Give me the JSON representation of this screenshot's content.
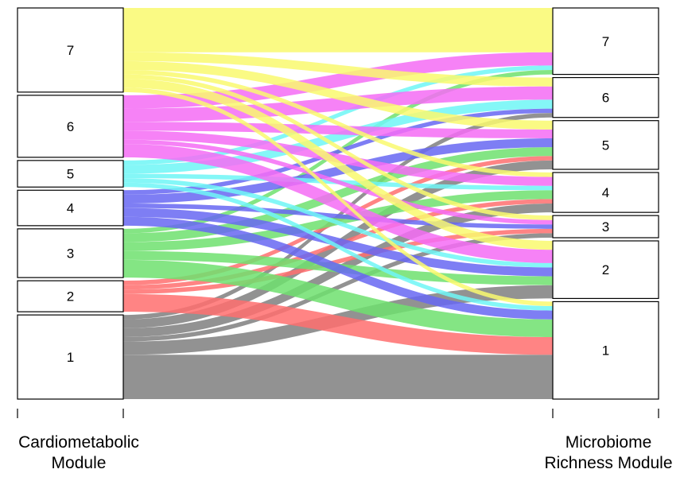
{
  "axes": {
    "left_label_lines": [
      "Cardiometabolic",
      "Module"
    ],
    "right_label_lines": [
      "Microbiome",
      "Richness Module"
    ]
  },
  "left_modules": [
    "7",
    "6",
    "5",
    "4",
    "3",
    "2",
    "1"
  ],
  "right_modules": [
    "7",
    "6",
    "5",
    "4",
    "3",
    "2",
    "1"
  ],
  "module_colors": {
    "1": "#7f7f7f",
    "2": "#ff6f6f",
    "3": "#6fe06f",
    "4": "#6767f2",
    "5": "#6ff6f6",
    "6": "#f56cf5",
    "7": "#f9f96f"
  },
  "flow_colored_by": "left module",
  "flows": [
    {
      "from": "7",
      "to": "7",
      "weight": 10
    },
    {
      "from": "7",
      "to": "6",
      "weight": 2
    },
    {
      "from": "7",
      "to": "5",
      "weight": 2
    },
    {
      "from": "7",
      "to": "4",
      "weight": 1
    },
    {
      "from": "7",
      "to": "3",
      "weight": 1
    },
    {
      "from": "7",
      "to": "2",
      "weight": 2
    },
    {
      "from": "7",
      "to": "1",
      "weight": 1
    },
    {
      "from": "6",
      "to": "7",
      "weight": 3
    },
    {
      "from": "6",
      "to": "6",
      "weight": 3
    },
    {
      "from": "6",
      "to": "5",
      "weight": 2
    },
    {
      "from": "6",
      "to": "4",
      "weight": 2
    },
    {
      "from": "6",
      "to": "3",
      "weight": 1
    },
    {
      "from": "6",
      "to": "2",
      "weight": 3
    },
    {
      "from": "5",
      "to": "7",
      "weight": 1
    },
    {
      "from": "5",
      "to": "6",
      "weight": 2
    },
    {
      "from": "5",
      "to": "4",
      "weight": 1
    },
    {
      "from": "5",
      "to": "2",
      "weight": 1
    },
    {
      "from": "5",
      "to": "1",
      "weight": 1
    },
    {
      "from": "4",
      "to": "6",
      "weight": 1
    },
    {
      "from": "4",
      "to": "5",
      "weight": 2
    },
    {
      "from": "4",
      "to": "3",
      "weight": 1
    },
    {
      "from": "4",
      "to": "2",
      "weight": 2
    },
    {
      "from": "4",
      "to": "1",
      "weight": 2
    },
    {
      "from": "3",
      "to": "7",
      "weight": 1
    },
    {
      "from": "3",
      "to": "5",
      "weight": 2
    },
    {
      "from": "3",
      "to": "4",
      "weight": 2
    },
    {
      "from": "3",
      "to": "2",
      "weight": 2
    },
    {
      "from": "3",
      "to": "1",
      "weight": 4
    },
    {
      "from": "2",
      "to": "5",
      "weight": 1
    },
    {
      "from": "2",
      "to": "4",
      "weight": 1
    },
    {
      "from": "2",
      "to": "3",
      "weight": 1
    },
    {
      "from": "2",
      "to": "1",
      "weight": 4
    },
    {
      "from": "1",
      "to": "6",
      "weight": 1
    },
    {
      "from": "1",
      "to": "5",
      "weight": 2
    },
    {
      "from": "1",
      "to": "4",
      "weight": 2
    },
    {
      "from": "1",
      "to": "3",
      "weight": 1
    },
    {
      "from": "1",
      "to": "2",
      "weight": 3
    },
    {
      "from": "1",
      "to": "1",
      "weight": 10
    }
  ]
}
